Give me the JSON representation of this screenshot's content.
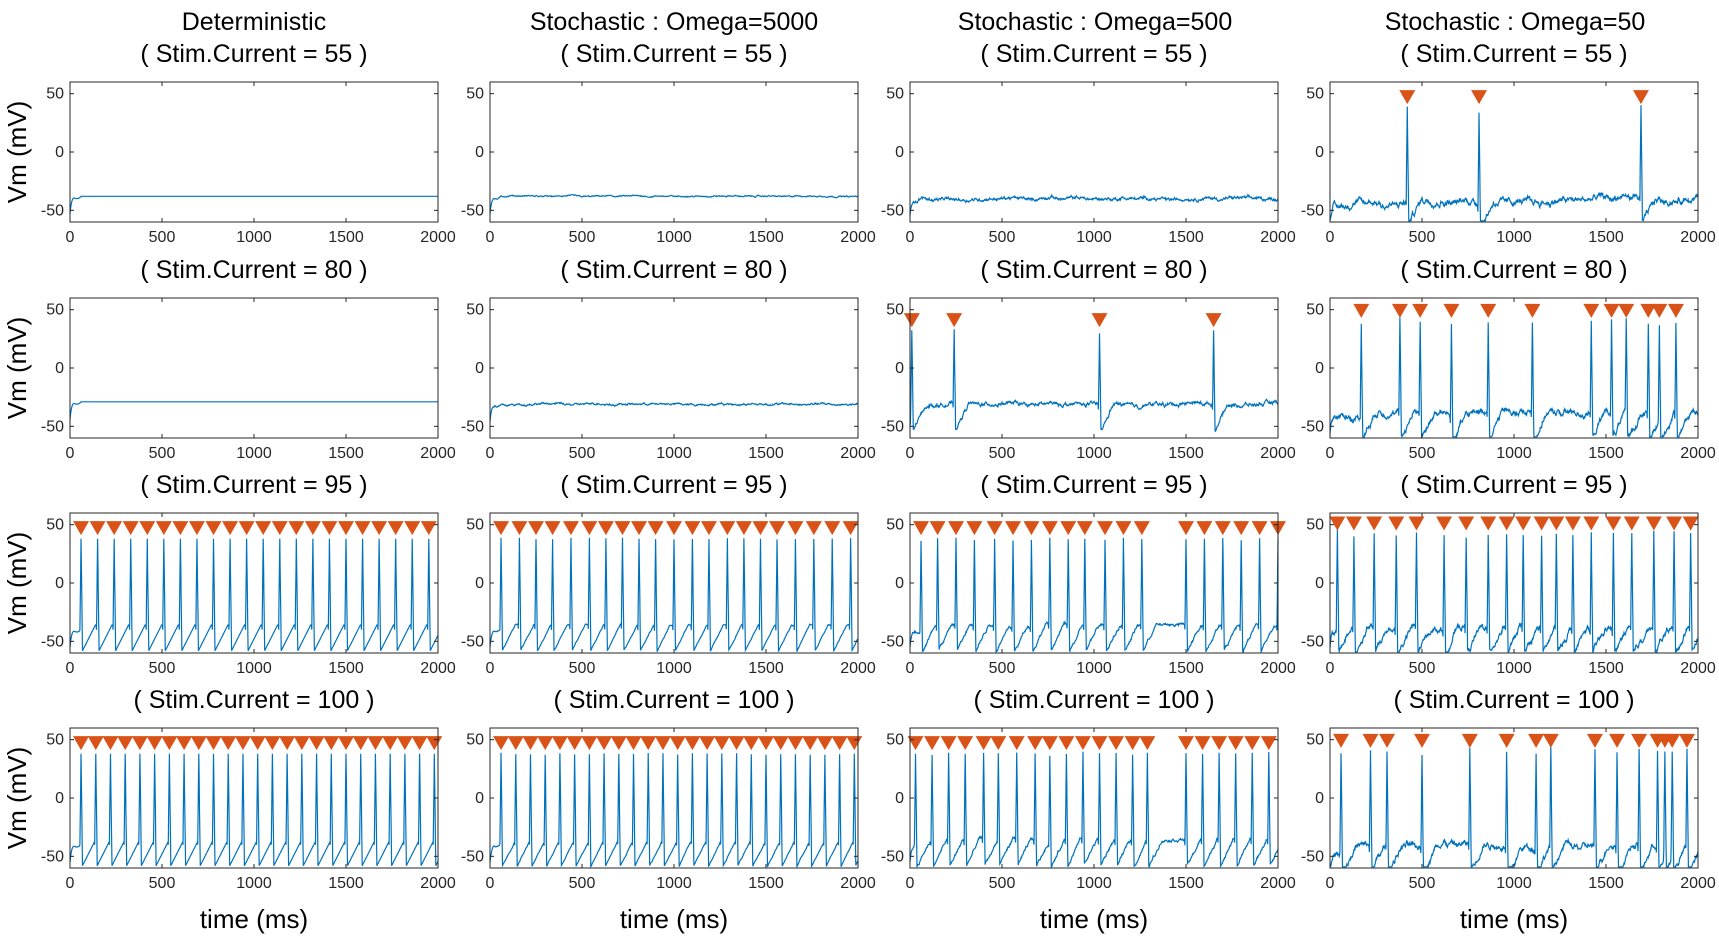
{
  "figure": {
    "column_titles": [
      "Deterministic",
      "Stochastic : Omega=5000",
      "Stochastic : Omega=500",
      "Stochastic : Omega=50"
    ],
    "ylabel": "Vm (mV)",
    "xlabel": "time (ms)",
    "trace_color": "#0072BD",
    "marker_color": "#D95319"
  },
  "chart_data": {
    "type": "line",
    "xlim": [
      0,
      2000
    ],
    "ylim": [
      -60,
      60
    ],
    "xticks": [
      0,
      500,
      1000,
      1500,
      2000
    ],
    "yticks": [
      -50,
      0,
      50
    ],
    "grid": false,
    "rows": [
      {
        "title": "( Stim.Current = 55 )",
        "stim": 55
      },
      {
        "title": "( Stim.Current = 80 )",
        "stim": 80
      },
      {
        "title": "( Stim.Current = 95 )",
        "stim": 95
      },
      {
        "title": "( Stim.Current = 100 )",
        "stim": 100
      }
    ],
    "panels": [
      {
        "row": 0,
        "col": 0,
        "rest": -38,
        "noise": 0,
        "spike_peak": 0,
        "spikes": []
      },
      {
        "row": 0,
        "col": 1,
        "rest": -38,
        "noise": 1,
        "spike_peak": 0,
        "spikes": []
      },
      {
        "row": 0,
        "col": 2,
        "rest": -40,
        "noise": 2.5,
        "spike_peak": 0,
        "spikes": []
      },
      {
        "row": 0,
        "col": 3,
        "rest": -45,
        "noise": 5,
        "spike_peak": 38,
        "spikes": [
          420,
          810,
          1690
        ]
      },
      {
        "row": 1,
        "col": 0,
        "rest": -29,
        "noise": 0,
        "spike_peak": 0,
        "spikes": []
      },
      {
        "row": 1,
        "col": 1,
        "rest": -31,
        "noise": 1.5,
        "spike_peak": 0,
        "spikes": []
      },
      {
        "row": 1,
        "col": 2,
        "rest": -35,
        "noise": 3,
        "spike_peak": 32,
        "spikes": [
          10,
          240,
          1030,
          1650
        ]
      },
      {
        "row": 1,
        "col": 3,
        "rest": -42,
        "noise": 5,
        "spike_peak": 40,
        "spikes": [
          170,
          380,
          490,
          660,
          860,
          1100,
          1420,
          1530,
          1610,
          1730,
          1790,
          1880
        ]
      },
      {
        "row": 2,
        "col": 0,
        "rest": -40,
        "noise": 0,
        "spike_peak": 38,
        "spikes": [
          60,
          150,
          240,
          330,
          420,
          510,
          600,
          690,
          780,
          870,
          960,
          1050,
          1140,
          1230,
          1320,
          1410,
          1500,
          1590,
          1680,
          1770,
          1860,
          1950
        ]
      },
      {
        "row": 2,
        "col": 1,
        "rest": -40,
        "noise": 1,
        "spike_peak": 38,
        "spikes": [
          60,
          160,
          250,
          340,
          440,
          540,
          630,
          720,
          810,
          900,
          1000,
          1100,
          1190,
          1290,
          1380,
          1470,
          1560,
          1660,
          1760,
          1860,
          1960
        ]
      },
      {
        "row": 2,
        "col": 2,
        "rest": -40,
        "noise": 2.5,
        "spike_peak": 38,
        "spikes": [
          60,
          150,
          250,
          350,
          460,
          560,
          660,
          760,
          860,
          950,
          1060,
          1160,
          1260,
          1500,
          1600,
          1700,
          1800,
          1900,
          2000
        ]
      },
      {
        "row": 2,
        "col": 3,
        "rest": -42,
        "noise": 5,
        "spike_peak": 42,
        "spikes": [
          40,
          130,
          240,
          360,
          470,
          620,
          740,
          860,
          960,
          1050,
          1150,
          1230,
          1320,
          1420,
          1540,
          1640,
          1760,
          1870,
          1960
        ]
      },
      {
        "row": 3,
        "col": 0,
        "rest": -40,
        "noise": 0,
        "spike_peak": 38,
        "spikes": [
          60,
          140,
          220,
          300,
          380,
          460,
          540,
          620,
          700,
          780,
          860,
          940,
          1020,
          1100,
          1180,
          1260,
          1340,
          1420,
          1500,
          1580,
          1660,
          1740,
          1820,
          1900,
          1980
        ]
      },
      {
        "row": 3,
        "col": 1,
        "rest": -40,
        "noise": 1,
        "spike_peak": 38,
        "spikes": [
          60,
          140,
          220,
          300,
          380,
          460,
          540,
          620,
          700,
          780,
          860,
          940,
          1020,
          1100,
          1180,
          1260,
          1340,
          1420,
          1500,
          1580,
          1660,
          1740,
          1820,
          1900,
          1980
        ]
      },
      {
        "row": 3,
        "col": 2,
        "rest": -40,
        "noise": 2.5,
        "spike_peak": 38,
        "spikes": [
          30,
          120,
          210,
          300,
          400,
          480,
          580,
          680,
          760,
          850,
          940,
          1030,
          1120,
          1210,
          1290,
          1500,
          1590,
          1680,
          1770,
          1860,
          1950
        ]
      },
      {
        "row": 3,
        "col": 3,
        "rest": -45,
        "noise": 5,
        "spike_peak": 40,
        "spikes": [
          60,
          220,
          310,
          500,
          760,
          960,
          1120,
          1200,
          1440,
          1560,
          1680,
          1780,
          1820,
          1860,
          1940
        ]
      }
    ]
  }
}
